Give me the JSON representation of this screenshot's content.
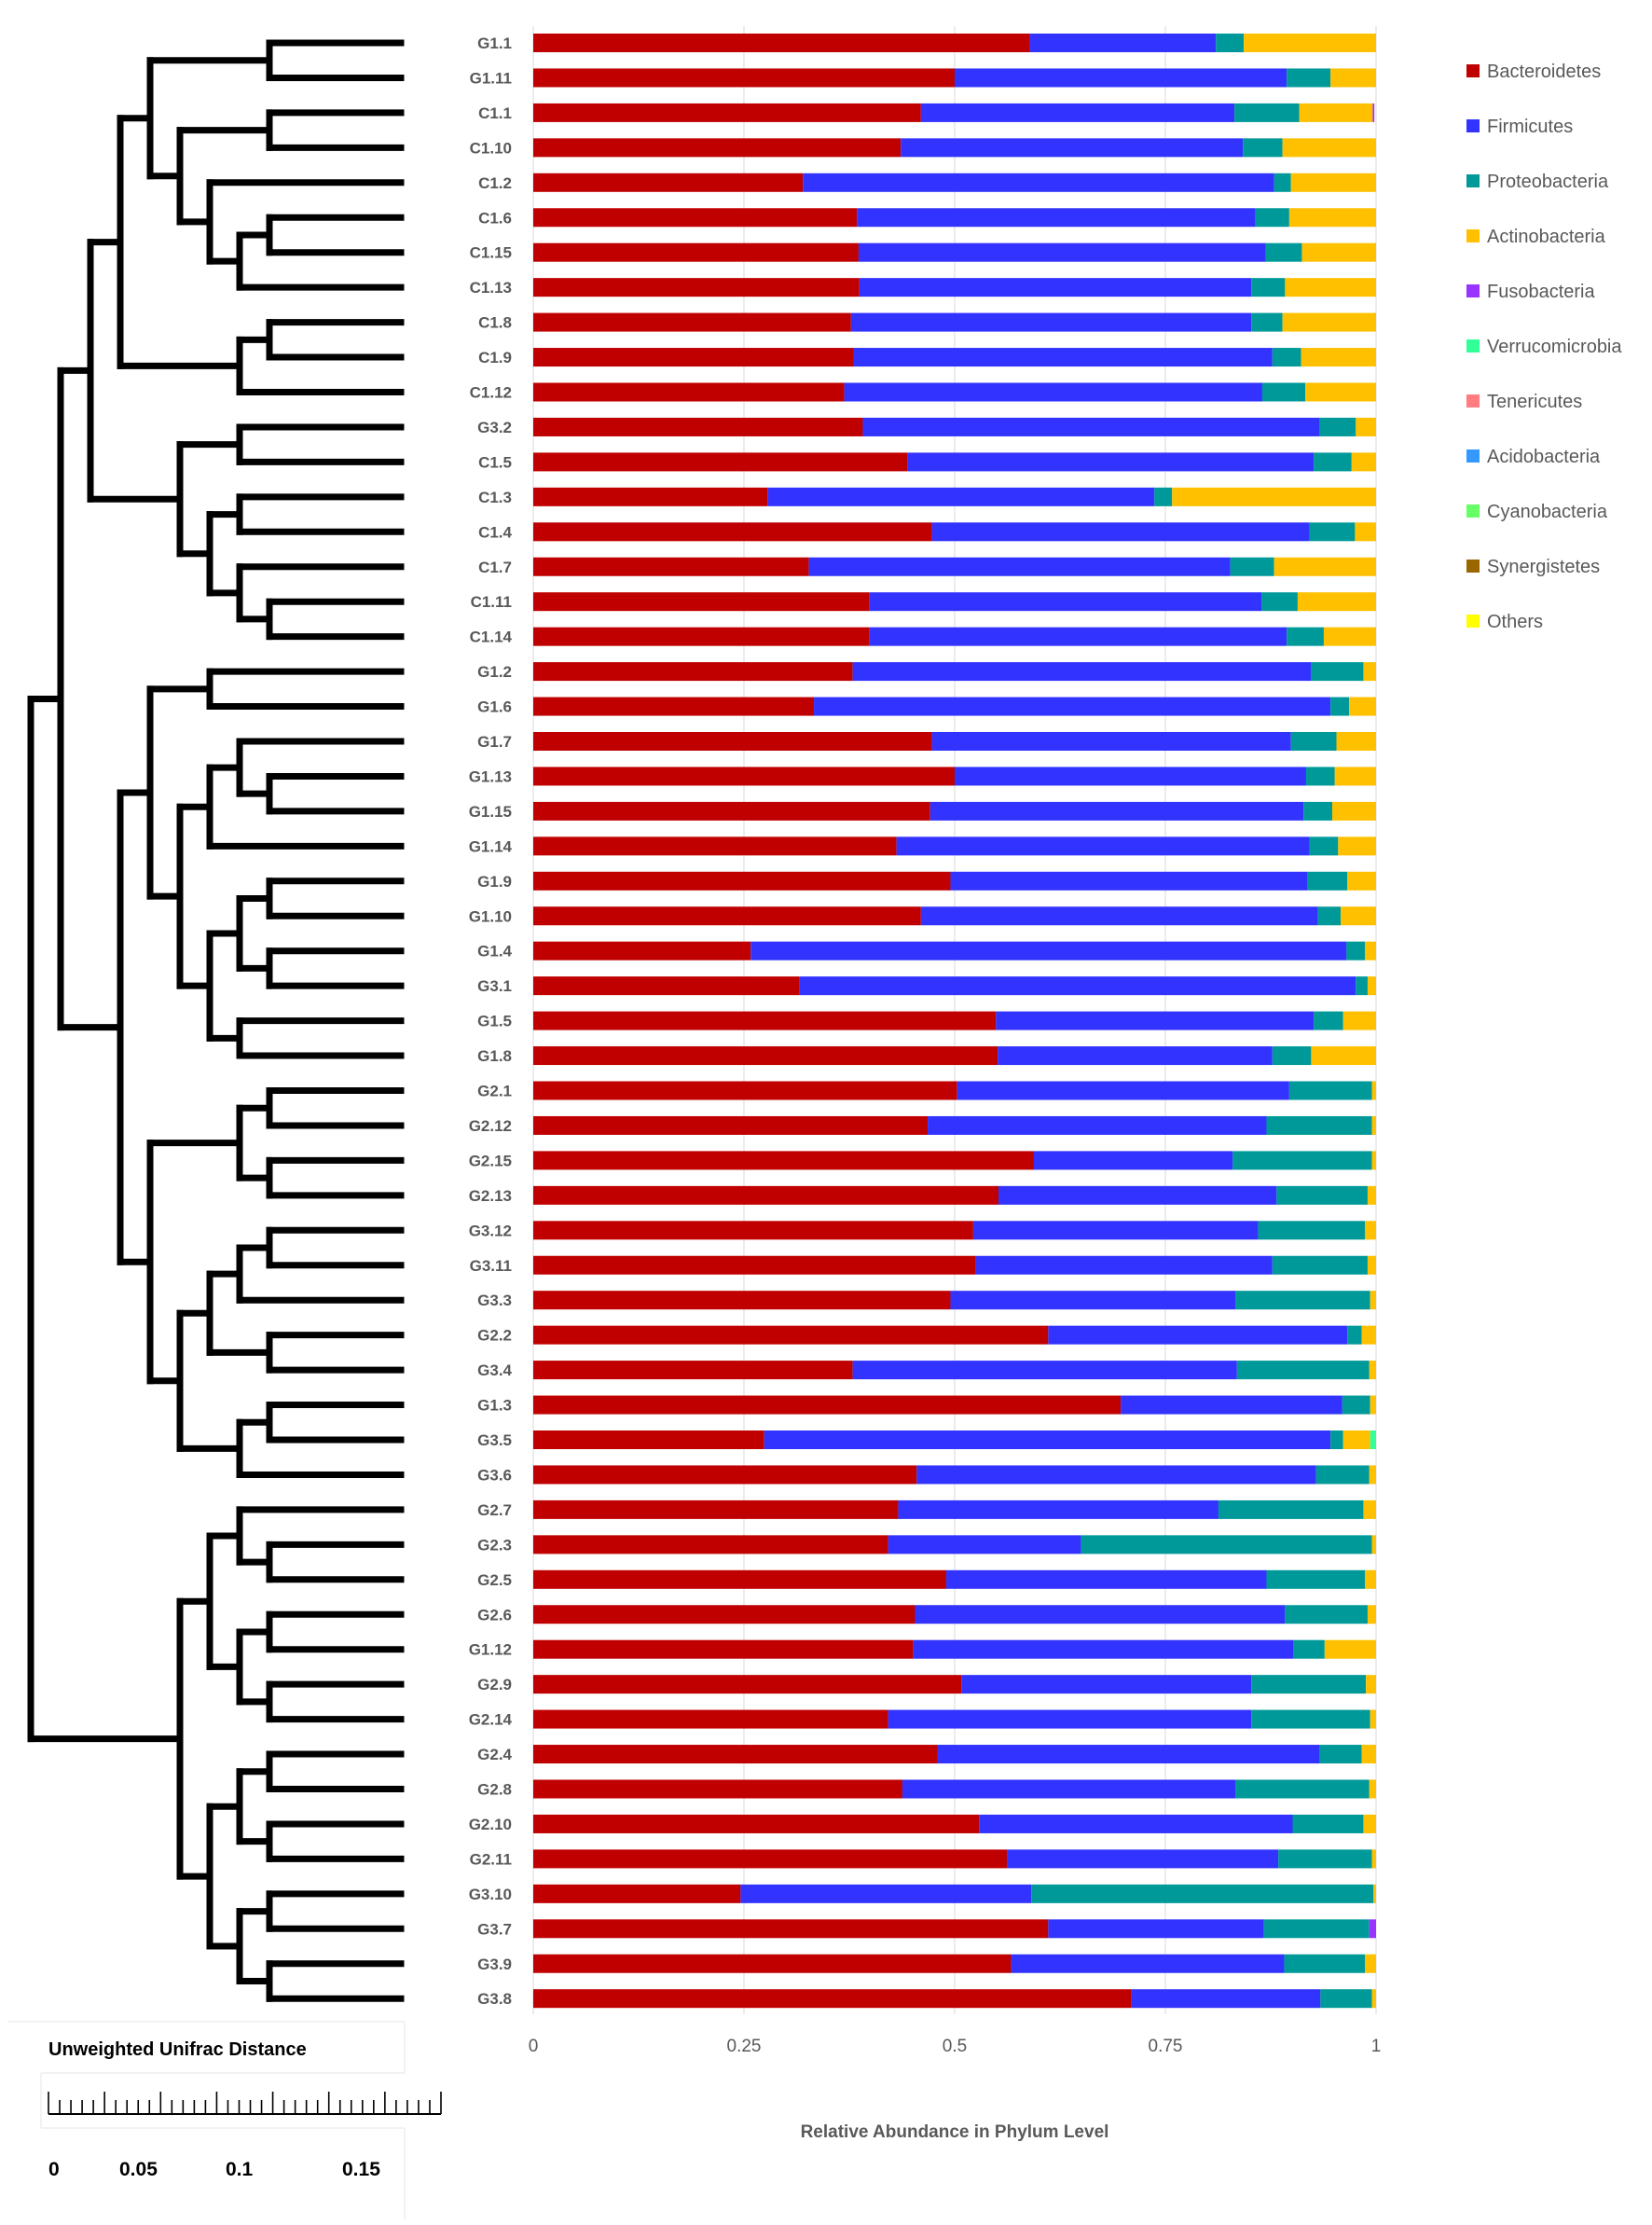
{
  "chart_data": {
    "type": "bar",
    "orientation": "horizontal",
    "stacked": true,
    "xlabel": "Relative Abundance in Phylum Level",
    "xlim": [
      0,
      1
    ],
    "xticks": [
      "0",
      "0.25",
      "0.5",
      "0.75",
      "1"
    ],
    "grid": true,
    "legend_position": "right",
    "categories": [
      "G1.1",
      "G1.11",
      "C1.1",
      "C1.10",
      "C1.2",
      "C1.6",
      "C1.15",
      "C1.13",
      "C1.8",
      "C1.9",
      "C1.12",
      "G3.2",
      "C1.5",
      "C1.3",
      "C1.4",
      "C1.7",
      "C1.11",
      "C1.14",
      "G1.2",
      "G1.6",
      "G1.7",
      "G1.13",
      "G1.15",
      "G1.14",
      "G1.9",
      "G1.10",
      "G1.4",
      "G3.1",
      "G1.5",
      "G1.8",
      "G2.1",
      "G2.12",
      "G2.15",
      "G2.13",
      "G3.12",
      "G3.11",
      "G3.3",
      "G2.2",
      "G3.4",
      "G1.3",
      "G3.5",
      "G3.6",
      "G2.7",
      "G2.3",
      "G2.5",
      "G2.6",
      "G1.12",
      "G2.9",
      "G2.14",
      "G2.4",
      "G2.8",
      "G2.10",
      "G2.11",
      "G3.10",
      "G3.7",
      "G3.9",
      "G3.8"
    ],
    "series": [
      {
        "name": "Bacteroidetes",
        "color": "#C00000",
        "values": [
          0.589,
          0.5,
          0.46,
          0.436,
          0.32,
          0.384,
          0.386,
          0.387,
          0.377,
          0.38,
          0.369,
          0.391,
          0.444,
          0.278,
          0.473,
          0.327,
          0.399,
          0.399,
          0.379,
          0.333,
          0.473,
          0.5,
          0.471,
          0.431,
          0.495,
          0.46,
          0.258,
          0.316,
          0.549,
          0.551,
          0.503,
          0.468,
          0.594,
          0.552,
          0.522,
          0.525,
          0.495,
          0.611,
          0.379,
          0.697,
          0.274,
          0.455,
          0.433,
          0.421,
          0.49,
          0.453,
          0.451,
          0.508,
          0.421,
          0.48,
          0.438,
          0.529,
          0.562,
          0.246,
          0.611,
          0.567,
          0.71
        ]
      },
      {
        "name": "Firmicutes",
        "color": "#3333FF",
        "values": [
          0.221,
          0.394,
          0.372,
          0.406,
          0.559,
          0.473,
          0.483,
          0.465,
          0.475,
          0.497,
          0.496,
          0.542,
          0.482,
          0.459,
          0.448,
          0.5,
          0.465,
          0.495,
          0.544,
          0.613,
          0.426,
          0.417,
          0.443,
          0.49,
          0.424,
          0.471,
          0.707,
          0.66,
          0.377,
          0.326,
          0.394,
          0.402,
          0.236,
          0.33,
          0.338,
          0.352,
          0.338,
          0.355,
          0.456,
          0.263,
          0.672,
          0.474,
          0.38,
          0.229,
          0.38,
          0.439,
          0.451,
          0.344,
          0.431,
          0.453,
          0.395,
          0.372,
          0.322,
          0.345,
          0.256,
          0.324,
          0.224
        ]
      },
      {
        "name": "Proteobacteria",
        "color": "#009999",
        "values": [
          0.033,
          0.052,
          0.077,
          0.047,
          0.02,
          0.04,
          0.043,
          0.04,
          0.037,
          0.034,
          0.051,
          0.043,
          0.045,
          0.021,
          0.054,
          0.052,
          0.043,
          0.044,
          0.062,
          0.022,
          0.054,
          0.034,
          0.034,
          0.034,
          0.047,
          0.027,
          0.022,
          0.014,
          0.035,
          0.046,
          0.098,
          0.125,
          0.165,
          0.108,
          0.127,
          0.113,
          0.16,
          0.017,
          0.157,
          0.033,
          0.015,
          0.063,
          0.172,
          0.345,
          0.117,
          0.098,
          0.037,
          0.136,
          0.141,
          0.05,
          0.159,
          0.084,
          0.111,
          0.406,
          0.125,
          0.096,
          0.061
        ]
      },
      {
        "name": "Actinobacteria",
        "color": "#FFC000",
        "values": [
          0.157,
          0.054,
          0.087,
          0.111,
          0.101,
          0.103,
          0.088,
          0.108,
          0.111,
          0.089,
          0.084,
          0.024,
          0.029,
          0.242,
          0.025,
          0.121,
          0.093,
          0.062,
          0.015,
          0.032,
          0.047,
          0.049,
          0.052,
          0.045,
          0.034,
          0.042,
          0.013,
          0.01,
          0.039,
          0.077,
          0.005,
          0.005,
          0.005,
          0.01,
          0.013,
          0.01,
          0.007,
          0.017,
          0.008,
          0.007,
          0.032,
          0.008,
          0.015,
          0.005,
          0.013,
          0.01,
          0.061,
          0.012,
          0.007,
          0.017,
          0.008,
          0.015,
          0.005,
          0.003,
          0.0,
          0.013,
          0.005
        ]
      },
      {
        "name": "Fusobacteria",
        "color": "#9933FF",
        "values": {
          "C1.1": 0.002,
          "G3.7": 0.008
        }
      },
      {
        "name": "Verrucomicrobia",
        "color": "#33FF99",
        "values": {
          "G3.5": 0.007
        }
      },
      {
        "name": "Tenericutes",
        "color": "#FF7C80",
        "values": {}
      },
      {
        "name": "Acidobacteria",
        "color": "#3399FF",
        "values": {}
      },
      {
        "name": "Cyanobacteria",
        "color": "#66FF66",
        "values": {}
      },
      {
        "name": "Synergistetes",
        "color": "#996600",
        "values": {}
      },
      {
        "name": "Others",
        "color": "#FFFF00",
        "values": {}
      }
    ]
  },
  "dendrogram": {
    "title": "Unweighted Unifrac Distance",
    "scale_ticks": [
      "0",
      "0.05",
      "0.1",
      "0.15"
    ],
    "tree": {
      "rank": 9,
      "children": [
        {
          "rank": 8,
          "children": [
            {
              "rank": 7,
              "children": [
                {
                  "rank": 6,
                  "children": [
                    {
                      "rank": 5,
                      "children": [
                        {
                          "rank": 1,
                          "children": [
                            "G1.1",
                            "G1.11"
                          ]
                        },
                        {
                          "rank": 4,
                          "children": [
                            {
                              "rank": 1,
                              "children": [
                                "C1.1",
                                "C1.10"
                              ]
                            },
                            {
                              "rank": 3,
                              "children": [
                                "C1.2",
                                {
                                  "rank": 2,
                                  "children": [
                                    {
                                      "rank": 1,
                                      "children": [
                                        "C1.6",
                                        "C1.15"
                                      ]
                                    },
                                    "C1.13"
                                  ]
                                }
                              ]
                            }
                          ]
                        }
                      ]
                    },
                    {
                      "rank": 2,
                      "children": [
                        {
                          "rank": 1,
                          "children": [
                            "C1.8",
                            "C1.9"
                          ]
                        },
                        "C1.12"
                      ]
                    }
                  ]
                },
                {
                  "rank": 4,
                  "children": [
                    {
                      "rank": 2,
                      "children": [
                        "G3.2",
                        "C1.5"
                      ]
                    },
                    {
                      "rank": 3,
                      "children": [
                        {
                          "rank": 2,
                          "children": [
                            "C1.3",
                            "C1.4"
                          ]
                        },
                        {
                          "rank": 2,
                          "children": [
                            "C1.7",
                            {
                              "rank": 1,
                              "children": [
                                "C1.11",
                                "C1.14"
                              ]
                            }
                          ]
                        }
                      ]
                    }
                  ]
                }
              ]
            },
            {
              "rank": 6,
              "children": [
                {
                  "rank": 5,
                  "children": [
                    {
                      "rank": 3,
                      "children": [
                        "G1.2",
                        "G1.6"
                      ]
                    },
                    {
                      "rank": 4,
                      "children": [
                        {
                          "rank": 3,
                          "children": [
                            {
                              "rank": 2,
                              "children": [
                                "G1.7",
                                {
                                  "rank": 1,
                                  "children": [
                                    "G1.13",
                                    "G1.15"
                                  ]
                                }
                              ]
                            },
                            "G1.14"
                          ]
                        },
                        {
                          "rank": 3,
                          "children": [
                            {
                              "rank": 2,
                              "children": [
                                {
                                  "rank": 1,
                                  "children": [
                                    "G1.9",
                                    "G1.10"
                                  ]
                                },
                                {
                                  "rank": 1,
                                  "children": [
                                    "G1.4",
                                    "G3.1"
                                  ]
                                }
                              ]
                            },
                            {
                              "rank": 2,
                              "children": [
                                "G1.5",
                                "G1.8"
                              ]
                            }
                          ]
                        }
                      ]
                    }
                  ]
                },
                {
                  "rank": 5,
                  "children": [
                    {
                      "rank": 2,
                      "children": [
                        {
                          "rank": 1,
                          "children": [
                            "G2.1",
                            "G2.12"
                          ]
                        },
                        {
                          "rank": 1,
                          "children": [
                            "G2.15",
                            "G2.13"
                          ]
                        }
                      ]
                    },
                    {
                      "rank": 4,
                      "children": [
                        {
                          "rank": 3,
                          "children": [
                            {
                              "rank": 2,
                              "children": [
                                {
                                  "rank": 1,
                                  "children": [
                                    "G3.12",
                                    "G3.11"
                                  ]
                                },
                                "G3.3"
                              ]
                            },
                            {
                              "rank": 1,
                              "children": [
                                "G2.2",
                                "G3.4"
                              ]
                            }
                          ]
                        },
                        {
                          "rank": 2,
                          "children": [
                            {
                              "rank": 1,
                              "children": [
                                "G1.3",
                                "G3.5"
                              ]
                            },
                            "G3.6"
                          ]
                        }
                      ]
                    }
                  ]
                }
              ]
            }
          ]
        },
        {
          "rank": 4,
          "children": [
            {
              "rank": 3,
              "children": [
                {
                  "rank": 2,
                  "children": [
                    "G2.7",
                    {
                      "rank": 1,
                      "children": [
                        "G2.3",
                        "G2.5"
                      ]
                    }
                  ]
                },
                {
                  "rank": 2,
                  "children": [
                    {
                      "rank": 1,
                      "children": [
                        "G2.6",
                        "G1.12"
                      ]
                    },
                    {
                      "rank": 1,
                      "children": [
                        "G2.9",
                        "G2.14"
                      ]
                    }
                  ]
                }
              ]
            },
            {
              "rank": 3,
              "children": [
                {
                  "rank": 2,
                  "children": [
                    {
                      "rank": 1,
                      "children": [
                        "G2.4",
                        "G2.8"
                      ]
                    },
                    {
                      "rank": 1,
                      "children": [
                        "G2.10",
                        "G2.11"
                      ]
                    }
                  ]
                },
                {
                  "rank": 2,
                  "children": [
                    {
                      "rank": 1,
                      "children": [
                        "G3.10",
                        "G3.7"
                      ]
                    },
                    {
                      "rank": 1,
                      "children": [
                        "G3.9",
                        "G3.8"
                      ]
                    }
                  ]
                }
              ]
            }
          ]
        }
      ]
    }
  }
}
